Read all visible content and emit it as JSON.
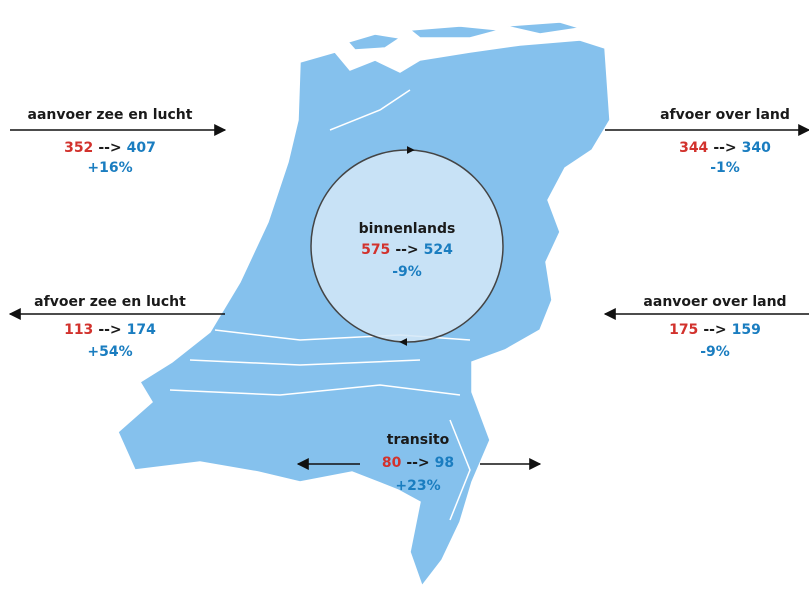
{
  "flows": [
    {
      "label": "aanvoer zee en lucht",
      "from": "352",
      "arrow": "-->",
      "to": "407",
      "change": "+16%"
    },
    {
      "label": "afvoer over land",
      "from": "344",
      "arrow": "-->",
      "to": "340",
      "change": "-1%"
    },
    {
      "label": "binnenlands",
      "from": "575",
      "arrow": "-->",
      "to": "524",
      "change": "-9%"
    },
    {
      "label": "afvoer zee en lucht",
      "from": "113",
      "arrow": "-->",
      "to": "174",
      "change": "+54%"
    },
    {
      "label": "aanvoer over land",
      "from": "175",
      "arrow": "-->",
      "to": "159",
      "change": "-9%"
    },
    {
      "label": "transito",
      "from": "80",
      "arrow": "-->",
      "to": "98",
      "change": "+23%"
    }
  ]
}
